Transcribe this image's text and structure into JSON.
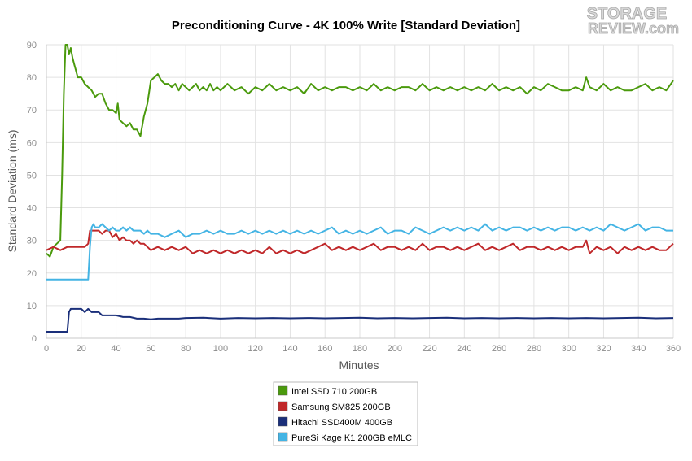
{
  "logo": {
    "line1": "STORAGE",
    "line2": "REVIEW.com"
  },
  "chart_data": {
    "type": "line",
    "title": "Preconditioning Curve - 4K 100% Write [Standard Deviation]",
    "xlabel": "Minutes",
    "ylabel": "Standard Deviation (ms)",
    "xlim": [
      0,
      360
    ],
    "ylim": [
      0,
      90
    ],
    "xticks": [
      0,
      20,
      40,
      60,
      80,
      100,
      120,
      140,
      160,
      180,
      200,
      220,
      240,
      260,
      280,
      300,
      320,
      340,
      360
    ],
    "yticks": [
      0,
      10,
      20,
      30,
      40,
      50,
      60,
      70,
      80,
      90
    ],
    "grid": true,
    "legend_position": "bottom",
    "series": [
      {
        "name": "Intel SSD 710 200GB",
        "color": "#4a9a0c",
        "x": [
          0,
          2,
          4,
          6,
          8,
          9,
          10,
          11,
          12,
          13,
          14,
          15,
          16,
          17,
          18,
          20,
          22,
          24,
          26,
          28,
          30,
          32,
          34,
          36,
          38,
          40,
          41,
          42,
          44,
          46,
          48,
          50,
          52,
          54,
          56,
          58,
          60,
          62,
          64,
          66,
          68,
          70,
          72,
          74,
          76,
          78,
          80,
          82,
          84,
          86,
          88,
          90,
          92,
          94,
          96,
          98,
          100,
          104,
          108,
          112,
          116,
          120,
          124,
          128,
          132,
          136,
          140,
          144,
          148,
          152,
          156,
          160,
          164,
          168,
          172,
          176,
          180,
          184,
          188,
          192,
          196,
          200,
          204,
          208,
          212,
          216,
          220,
          224,
          228,
          232,
          236,
          240,
          244,
          248,
          252,
          256,
          260,
          264,
          268,
          272,
          276,
          280,
          284,
          288,
          292,
          296,
          300,
          304,
          308,
          310,
          312,
          316,
          320,
          324,
          328,
          332,
          336,
          340,
          344,
          348,
          352,
          356,
          360
        ],
        "y": [
          26,
          25,
          28,
          29,
          30,
          50,
          75,
          92,
          90,
          87,
          89,
          86,
          84,
          82,
          80,
          80,
          78,
          77,
          76,
          74,
          75,
          75,
          72,
          70,
          70,
          69,
          72,
          67,
          66,
          65,
          66,
          64,
          64,
          62,
          68,
          72,
          79,
          80,
          81,
          79,
          78,
          78,
          77,
          78,
          76,
          78,
          77,
          76,
          77,
          78,
          76,
          77,
          76,
          78,
          76,
          77,
          76,
          78,
          76,
          77,
          75,
          77,
          76,
          78,
          76,
          77,
          76,
          77,
          75,
          78,
          76,
          77,
          76,
          77,
          77,
          76,
          77,
          76,
          78,
          76,
          77,
          76,
          77,
          77,
          76,
          78,
          76,
          77,
          76,
          77,
          76,
          77,
          76,
          77,
          76,
          78,
          76,
          77,
          76,
          77,
          75,
          77,
          76,
          78,
          77,
          76,
          76,
          77,
          76,
          80,
          77,
          76,
          78,
          76,
          77,
          76,
          76,
          77,
          78,
          76,
          77,
          76,
          79
        ]
      },
      {
        "name": "Samsung SM825 200GB",
        "color": "#c0282a",
        "x": [
          0,
          4,
          8,
          12,
          16,
          18,
          20,
          22,
          24,
          25,
          26,
          28,
          30,
          32,
          34,
          36,
          38,
          40,
          42,
          44,
          46,
          48,
          50,
          52,
          54,
          56,
          58,
          60,
          64,
          68,
          72,
          76,
          80,
          84,
          88,
          92,
          96,
          100,
          104,
          108,
          112,
          116,
          120,
          124,
          128,
          132,
          136,
          140,
          144,
          148,
          152,
          156,
          160,
          164,
          168,
          172,
          176,
          180,
          184,
          188,
          192,
          196,
          200,
          204,
          208,
          212,
          216,
          220,
          224,
          228,
          232,
          236,
          240,
          244,
          248,
          252,
          256,
          260,
          264,
          268,
          272,
          276,
          280,
          284,
          288,
          292,
          296,
          300,
          304,
          308,
          310,
          312,
          316,
          320,
          324,
          328,
          332,
          336,
          340,
          344,
          348,
          352,
          356,
          360
        ],
        "y": [
          27,
          28,
          27,
          28,
          28,
          28,
          28,
          28,
          29,
          33,
          33,
          33,
          33,
          32,
          33,
          33,
          31,
          32,
          30,
          31,
          30,
          30,
          29,
          30,
          29,
          29,
          28,
          27,
          28,
          27,
          28,
          27,
          28,
          26,
          27,
          26,
          27,
          26,
          27,
          26,
          27,
          26,
          27,
          26,
          28,
          26,
          27,
          26,
          27,
          26,
          27,
          28,
          29,
          27,
          28,
          27,
          28,
          27,
          28,
          29,
          27,
          28,
          28,
          27,
          28,
          27,
          29,
          27,
          28,
          28,
          27,
          28,
          27,
          28,
          29,
          27,
          28,
          27,
          28,
          29,
          27,
          28,
          28,
          27,
          28,
          27,
          28,
          27,
          28,
          28,
          30,
          26,
          28,
          27,
          28,
          26,
          28,
          27,
          28,
          27,
          28,
          27,
          27,
          29
        ]
      },
      {
        "name": "Hitachi SSD400M 400GB",
        "color": "#1a2f7a",
        "x": [
          0,
          4,
          8,
          10,
          12,
          13,
          14,
          16,
          18,
          20,
          22,
          24,
          26,
          28,
          30,
          32,
          34,
          36,
          38,
          40,
          44,
          48,
          52,
          56,
          60,
          64,
          68,
          72,
          76,
          80,
          90,
          100,
          110,
          120,
          130,
          140,
          150,
          160,
          170,
          180,
          190,
          200,
          210,
          220,
          230,
          240,
          250,
          260,
          270,
          280,
          290,
          300,
          310,
          320,
          330,
          340,
          350,
          360
        ],
        "y": [
          2,
          2,
          2,
          2,
          2,
          8,
          9,
          9,
          9,
          9,
          8,
          9,
          8,
          8,
          8,
          7,
          7,
          7,
          7,
          7,
          6.5,
          6.5,
          6,
          6,
          5.8,
          6,
          6,
          6,
          6,
          6.2,
          6.3,
          6,
          6.2,
          6.1,
          6.2,
          6.1,
          6.2,
          6.1,
          6.2,
          6.3,
          6.1,
          6.2,
          6.1,
          6.2,
          6.3,
          6.1,
          6.2,
          6.1,
          6.2,
          6.1,
          6.2,
          6.1,
          6.2,
          6.1,
          6.2,
          6.3,
          6.1,
          6.2
        ]
      },
      {
        "name": "PureSi Kage K1 200GB eMLC",
        "color": "#44b4e4",
        "x": [
          0,
          4,
          8,
          12,
          16,
          20,
          24,
          25,
          26,
          27,
          28,
          30,
          32,
          34,
          36,
          38,
          40,
          42,
          44,
          46,
          48,
          50,
          52,
          54,
          56,
          58,
          60,
          64,
          68,
          72,
          76,
          80,
          84,
          88,
          92,
          96,
          100,
          104,
          108,
          112,
          116,
          120,
          124,
          128,
          132,
          136,
          140,
          144,
          148,
          152,
          156,
          160,
          164,
          168,
          172,
          176,
          180,
          184,
          188,
          192,
          196,
          200,
          204,
          208,
          212,
          216,
          220,
          224,
          228,
          232,
          236,
          240,
          244,
          248,
          252,
          256,
          260,
          264,
          268,
          272,
          276,
          280,
          284,
          288,
          292,
          296,
          300,
          304,
          308,
          312,
          316,
          320,
          324,
          328,
          332,
          336,
          340,
          344,
          348,
          352,
          356,
          360
        ],
        "y": [
          18,
          18,
          18,
          18,
          18,
          18,
          18,
          28,
          34,
          35,
          34,
          34,
          35,
          34,
          33,
          34,
          33,
          33,
          34,
          33,
          34,
          33,
          33,
          33,
          32,
          33,
          32,
          32,
          31,
          32,
          33,
          31,
          32,
          32,
          33,
          32,
          33,
          32,
          32,
          33,
          32,
          33,
          32,
          33,
          32,
          33,
          32,
          33,
          32,
          33,
          32,
          33,
          34,
          32,
          33,
          32,
          33,
          32,
          33,
          34,
          32,
          33,
          33,
          32,
          34,
          33,
          32,
          33,
          34,
          33,
          34,
          33,
          34,
          33,
          35,
          33,
          34,
          33,
          34,
          34,
          33,
          34,
          33,
          34,
          33,
          34,
          34,
          33,
          34,
          33,
          34,
          33,
          35,
          34,
          33,
          34,
          35,
          33,
          34,
          34,
          33,
          33
        ]
      }
    ]
  }
}
